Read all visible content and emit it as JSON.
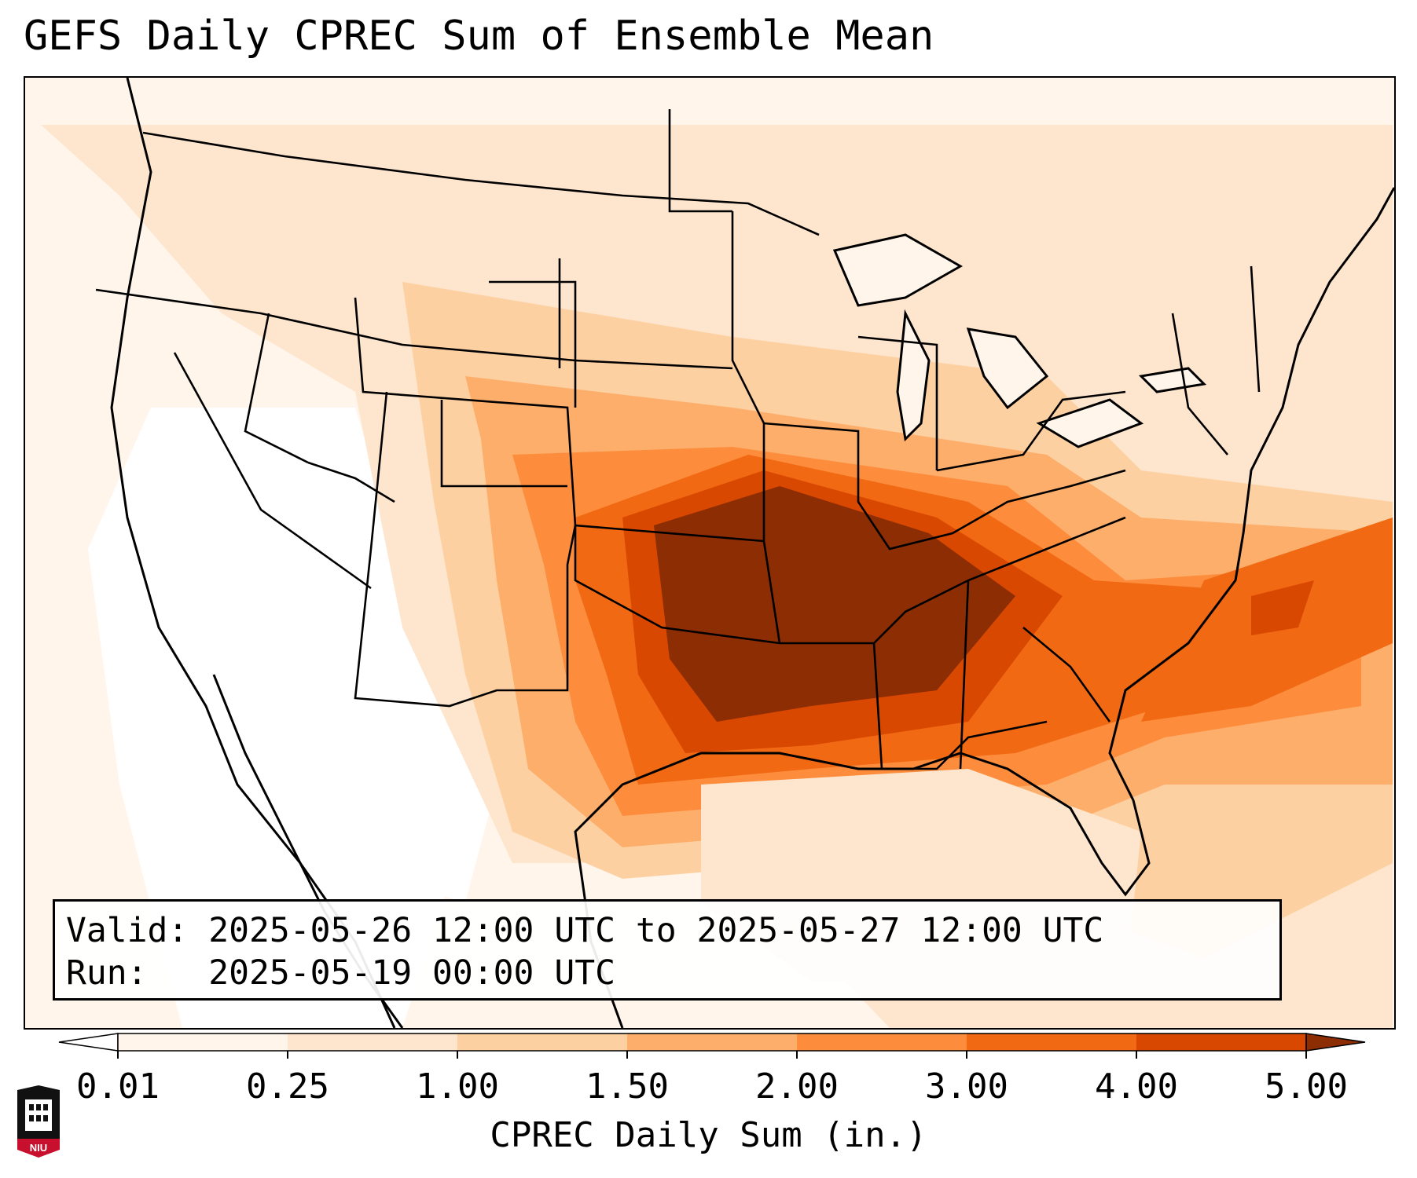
{
  "title": "GEFS Daily CPREC Sum of Ensemble Mean",
  "info": {
    "valid_label": "Valid:",
    "valid_value": "2025-05-26 12:00 UTC to 2025-05-27 12:00 UTC",
    "run_label": "Run:",
    "run_value": "2025-05-19 00:00 UTC"
  },
  "colorbar": {
    "label": "CPREC Daily Sum (in.)",
    "ticks": [
      "0.01",
      "0.25",
      "1.00",
      "1.50",
      "2.00",
      "3.00",
      "4.00",
      "5.00"
    ],
    "colors": [
      "#fff5eb",
      "#fee6ce",
      "#fdd0a2",
      "#fdae6b",
      "#fd8d3c",
      "#f16913",
      "#d94801",
      "#8c2d04"
    ],
    "under_color": "#ffffff",
    "over_color": "#8c2d04",
    "extend": "both"
  },
  "map": {
    "region": "Continental United States",
    "projection": "Lambert Conformal",
    "features": [
      "coastlines",
      "country borders",
      "state borders"
    ]
  },
  "logo": {
    "text": "NIU",
    "colors": {
      "shield": "#000000",
      "banner": "#c8102e"
    }
  }
}
